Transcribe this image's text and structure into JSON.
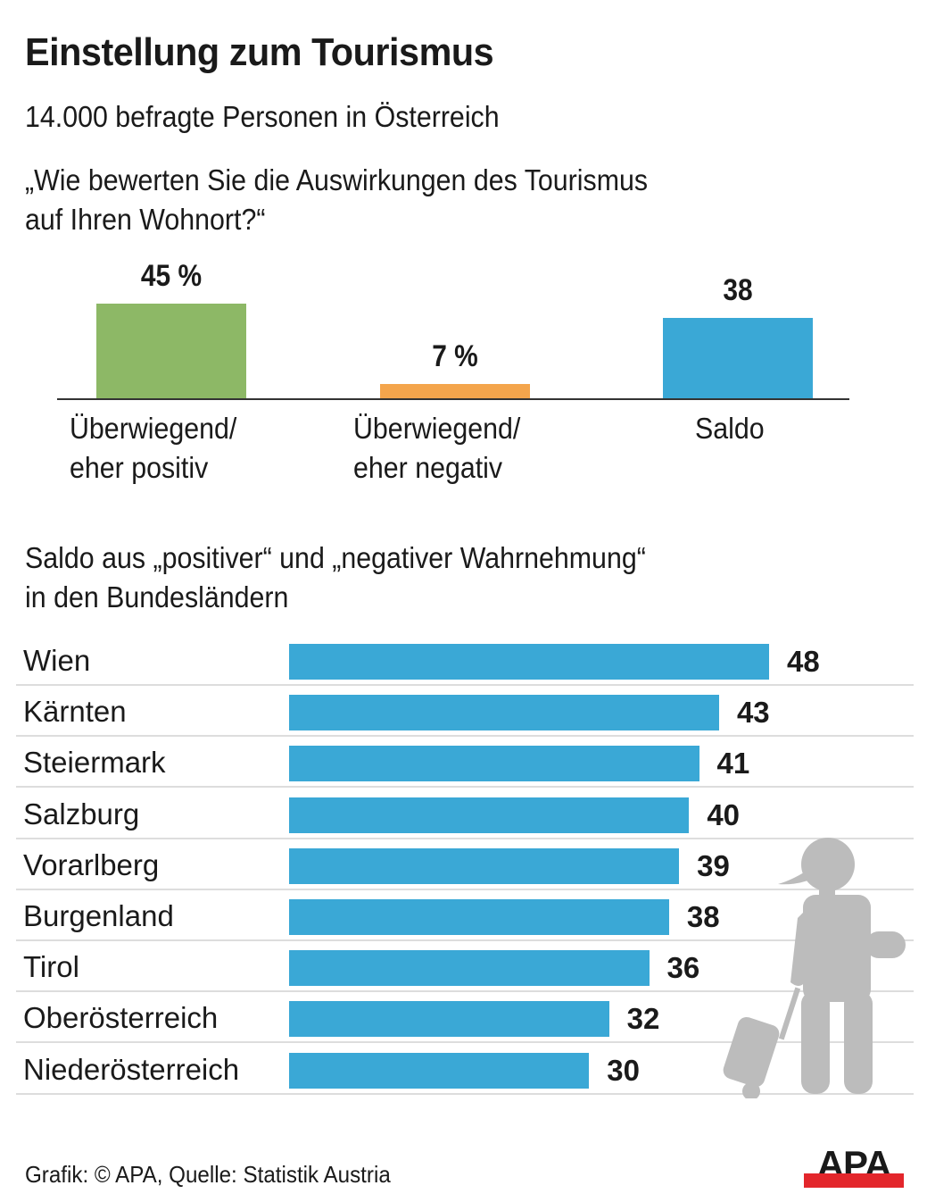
{
  "header": {
    "title": "Einstellung zum Tourismus",
    "subtitle": "14.000 befragte Personen in Österreich"
  },
  "chart_data": [
    {
      "type": "bar",
      "title": "„Wie bewerten Sie die Auswirkungen des Tourismus auf Ihren Wohnort?“",
      "title_lines": [
        "„Wie bewerten Sie die Auswirkungen des Tourismus",
        "auf Ihren Wohnort?“"
      ],
      "categories": [
        "Überwiegend/ eher positiv",
        "Überwiegend/ eher negativ",
        "Saldo"
      ],
      "category_lines": [
        [
          "Überwiegend/",
          "eher positiv"
        ],
        [
          "Überwiegend/",
          "eher negativ"
        ],
        [
          "Saldo"
        ]
      ],
      "values": [
        45,
        7,
        38
      ],
      "value_labels": [
        "45 %",
        "7 %",
        "38"
      ],
      "colors": [
        "#8db866",
        "#f4a54c",
        "#3aa8d6"
      ],
      "xlabel": "",
      "ylabel": "",
      "ylim": [
        0,
        45
      ],
      "grid": false
    },
    {
      "type": "bar",
      "orientation": "horizontal",
      "title": "Saldo aus „positiver“ und „negativer Wahrnehmung“ in den Bundesländern",
      "title_lines": [
        "Saldo aus „positiver“ und „negativer Wahrnehmung“",
        "in den Bundesländern"
      ],
      "categories": [
        "Wien",
        "Kärnten",
        "Steiermark",
        "Salzburg",
        "Vorarlberg",
        "Burgenland",
        "Tirol",
        "Oberösterreich",
        "Niederösterreich"
      ],
      "values": [
        48,
        43,
        41,
        40,
        39,
        38,
        36,
        32,
        30
      ],
      "color": "#3aa8d6",
      "xlabel": "",
      "ylabel": "",
      "xlim": [
        0,
        48
      ],
      "grid": true
    }
  ],
  "footer": {
    "source": "Grafik: © APA, Quelle: Statistik Austria",
    "logo_text": "APA",
    "logo_accent": "#e3262b"
  },
  "illustration": {
    "icon": "traveler-with-suitcase-icon",
    "color": "#bcbcbc"
  }
}
